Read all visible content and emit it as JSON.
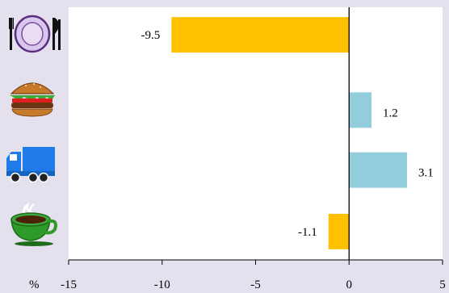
{
  "chart_data": {
    "type": "bar",
    "orientation": "horizontal",
    "categories": [
      {
        "icon": "dining-plate-icon",
        "value": -9.5,
        "label": "-9.5"
      },
      {
        "icon": "burger-icon",
        "value": 1.2,
        "label": "1.2"
      },
      {
        "icon": "delivery-truck-icon",
        "value": 3.1,
        "label": "3.1"
      },
      {
        "icon": "coffee-cup-icon",
        "value": -1.1,
        "label": "-1.1"
      }
    ],
    "xlim": [
      -15,
      5
    ],
    "xticks": [
      {
        "value": -15,
        "label": "-15"
      },
      {
        "value": -10,
        "label": "-10"
      },
      {
        "value": -5,
        "label": "-5"
      },
      {
        "value": 0,
        "label": "0"
      },
      {
        "value": 5,
        "label": "5"
      }
    ],
    "xunit": "%",
    "grid": false,
    "colors": {
      "negative": "#ffc000",
      "positive": "#92cddc",
      "background": "#e4e0ed",
      "plot_area": "#ffffff"
    }
  }
}
